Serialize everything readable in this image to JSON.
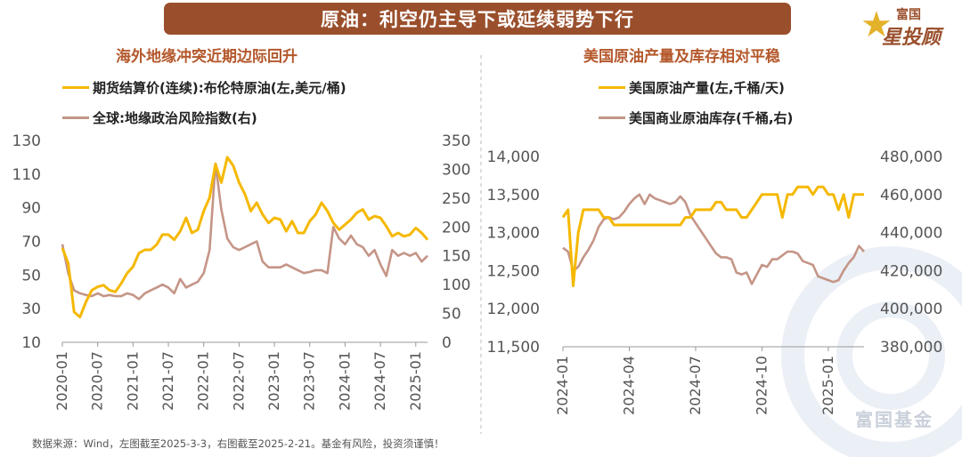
{
  "header": {
    "title": "原油：利空仍主导下或延续弱势下行"
  },
  "brand": {
    "logo_top": "富国",
    "logo_bottom": "星投顾",
    "watermark": "富国基金"
  },
  "footnote": "数据来源：Wind，左图截至2025-3-3，右图截至2025-2-21。基金有风险，投资须谨慎！",
  "colors": {
    "gold": "#f5b800",
    "mauve": "#c49587",
    "accent": "#9a4f2c",
    "subtitle": "#b4582c"
  },
  "chart_data": [
    {
      "type": "line",
      "title": "海外地缘冲突近期边际回升",
      "x": [
        "2020-01",
        "2020-02",
        "2020-03",
        "2020-04",
        "2020-05",
        "2020-06",
        "2020-07",
        "2020-08",
        "2020-09",
        "2020-10",
        "2020-11",
        "2020-12",
        "2021-01",
        "2021-02",
        "2021-03",
        "2021-04",
        "2021-05",
        "2021-06",
        "2021-07",
        "2021-08",
        "2021-09",
        "2021-10",
        "2021-11",
        "2021-12",
        "2022-01",
        "2022-02",
        "2022-03",
        "2022-04",
        "2022-05",
        "2022-06",
        "2022-07",
        "2022-08",
        "2022-09",
        "2022-10",
        "2022-11",
        "2022-12",
        "2023-01",
        "2023-02",
        "2023-03",
        "2023-04",
        "2023-05",
        "2023-06",
        "2023-07",
        "2023-08",
        "2023-09",
        "2023-10",
        "2023-11",
        "2023-12",
        "2024-01",
        "2024-02",
        "2024-03",
        "2024-04",
        "2024-05",
        "2024-06",
        "2024-07",
        "2024-08",
        "2024-09",
        "2024-10",
        "2024-11",
        "2024-12",
        "2025-01",
        "2025-02",
        "2025-03"
      ],
      "x_ticks": [
        "2020-01",
        "2020-07",
        "2021-01",
        "2021-07",
        "2022-01",
        "2022-07",
        "2023-01",
        "2023-07",
        "2024-01",
        "2024-07",
        "2025-01"
      ],
      "series": [
        {
          "name": "期货结算价(连续):布伦特原油(左,美元/桶)",
          "axis": "left",
          "color": "#f5b800",
          "values": [
            66,
            57,
            28,
            25,
            34,
            41,
            43,
            44,
            41,
            40,
            45,
            51,
            55,
            63,
            65,
            65,
            68,
            74,
            74,
            71,
            76,
            84,
            75,
            77,
            88,
            96,
            116,
            105,
            120,
            115,
            105,
            98,
            88,
            93,
            86,
            81,
            84,
            83,
            76,
            82,
            75,
            75,
            82,
            86,
            93,
            88,
            81,
            77,
            80,
            83,
            87,
            89,
            83,
            85,
            84,
            79,
            73,
            75,
            73,
            74,
            78,
            75,
            71
          ]
        },
        {
          "name": "全球:地缘政治风险指数(右)",
          "axis": "right",
          "color": "#c49587",
          "values": [
            170,
            120,
            90,
            85,
            82,
            80,
            85,
            80,
            82,
            80,
            80,
            85,
            82,
            75,
            85,
            90,
            95,
            100,
            95,
            85,
            110,
            95,
            100,
            105,
            120,
            160,
            310,
            230,
            180,
            165,
            160,
            165,
            170,
            175,
            140,
            130,
            130,
            130,
            135,
            130,
            125,
            120,
            122,
            125,
            125,
            120,
            200,
            180,
            170,
            185,
            170,
            165,
            150,
            160,
            135,
            115,
            160,
            150,
            155,
            150,
            155,
            140,
            150
          ]
        }
      ],
      "yleft": {
        "min": 10,
        "max": 130,
        "ticks": [
          10,
          30,
          50,
          70,
          90,
          110,
          130
        ]
      },
      "yright": {
        "min": 0,
        "max": 350,
        "ticks": [
          0,
          50,
          100,
          150,
          200,
          250,
          300,
          350
        ]
      }
    },
    {
      "type": "line",
      "title": "美国原油产量及库存相对平稳",
      "x": [
        "2024-01-05",
        "2024-01-12",
        "2024-01-19",
        "2024-01-26",
        "2024-02-02",
        "2024-02-09",
        "2024-02-16",
        "2024-02-23",
        "2024-03-01",
        "2024-03-08",
        "2024-03-15",
        "2024-03-22",
        "2024-03-29",
        "2024-04-05",
        "2024-04-12",
        "2024-04-19",
        "2024-04-26",
        "2024-05-03",
        "2024-05-10",
        "2024-05-17",
        "2024-05-24",
        "2024-05-31",
        "2024-06-07",
        "2024-06-14",
        "2024-06-21",
        "2024-06-28",
        "2024-07-05",
        "2024-07-12",
        "2024-07-19",
        "2024-07-26",
        "2024-08-02",
        "2024-08-09",
        "2024-08-16",
        "2024-08-23",
        "2024-08-30",
        "2024-09-06",
        "2024-09-13",
        "2024-09-20",
        "2024-09-27",
        "2024-10-04",
        "2024-10-11",
        "2024-10-18",
        "2024-10-25",
        "2024-11-01",
        "2024-11-08",
        "2024-11-15",
        "2024-11-22",
        "2024-11-29",
        "2024-12-06",
        "2024-12-13",
        "2024-12-20",
        "2024-12-27",
        "2025-01-03",
        "2025-01-10",
        "2025-01-17",
        "2025-01-24",
        "2025-01-31",
        "2025-02-07",
        "2025-02-14",
        "2025-02-21"
      ],
      "x_ticks": [
        "2024-01",
        "2024-04",
        "2024-07",
        "2024-10",
        "2025-01"
      ],
      "series": [
        {
          "name": "美国原油产量(左,千桶/天)",
          "axis": "left",
          "color": "#f5b800",
          "values": [
            13200,
            13300,
            12300,
            13000,
            13300,
            13300,
            13300,
            13300,
            13200,
            13200,
            13100,
            13100,
            13100,
            13100,
            13100,
            13100,
            13100,
            13100,
            13100,
            13100,
            13100,
            13100,
            13100,
            13100,
            13200,
            13200,
            13300,
            13300,
            13300,
            13300,
            13400,
            13400,
            13300,
            13300,
            13300,
            13200,
            13200,
            13300,
            13400,
            13500,
            13500,
            13500,
            13500,
            13200,
            13500,
            13500,
            13600,
            13600,
            13600,
            13500,
            13600,
            13600,
            13500,
            13500,
            13300,
            13500,
            13200,
            13500,
            13500,
            13500
          ]
        },
        {
          "name": "美国商业原油库存(千桶,右)",
          "axis": "right",
          "color": "#c49587",
          "values": [
            432000,
            430000,
            420000,
            422000,
            427000,
            431000,
            436000,
            443000,
            447000,
            448000,
            447000,
            448000,
            451000,
            455000,
            458000,
            460000,
            455000,
            460000,
            458000,
            457000,
            456000,
            455000,
            456000,
            459000,
            456000,
            449000,
            445000,
            441000,
            437000,
            433000,
            429000,
            427000,
            427000,
            426000,
            419000,
            418000,
            419000,
            413000,
            418000,
            423000,
            422000,
            426000,
            426000,
            428000,
            430000,
            430000,
            429000,
            425000,
            424000,
            423000,
            417000,
            416000,
            415000,
            414000,
            415000,
            420000,
            424000,
            427000,
            433000,
            430000
          ]
        }
      ],
      "yleft": {
        "min": 11500,
        "max": 14000,
        "ticks": [
          "11,500",
          "12,000",
          "12,500",
          "13,000",
          "13,500",
          "14,000"
        ]
      },
      "yright": {
        "min": 380000,
        "max": 480000,
        "ticks": [
          "380,000",
          "400,000",
          "420,000",
          "440,000",
          "460,000",
          "480,000"
        ]
      }
    }
  ]
}
